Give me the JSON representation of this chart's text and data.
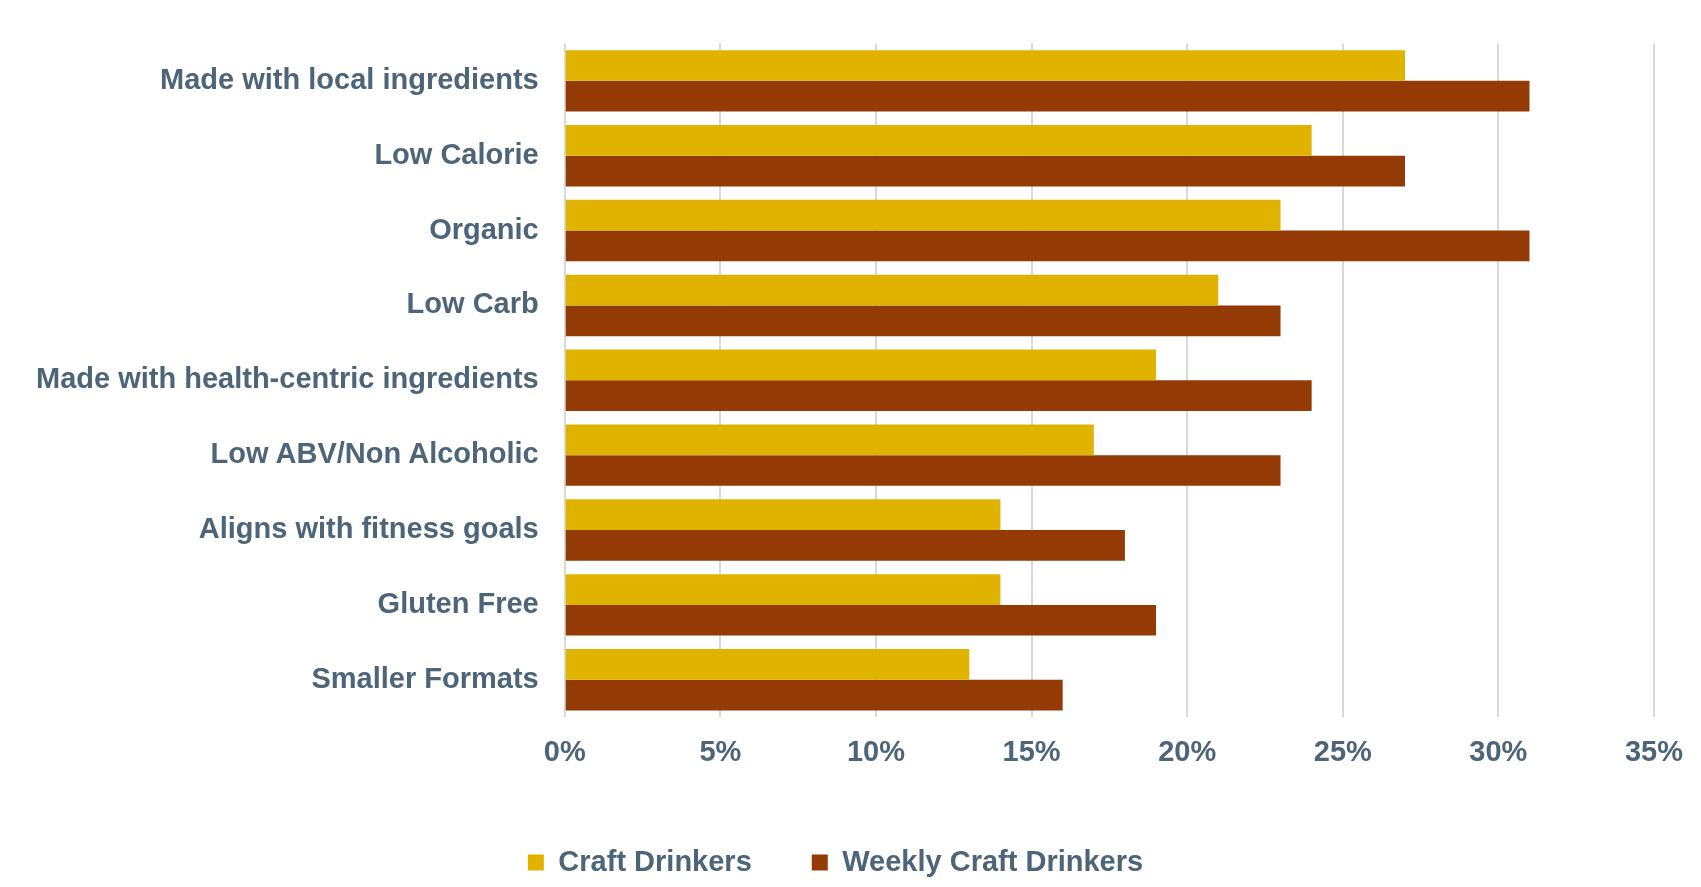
{
  "chart_data": {
    "type": "bar",
    "orientation": "horizontal",
    "categories": [
      "Made with local ingredients",
      "Low Calorie",
      "Organic",
      "Low Carb",
      "Made with health-centric ingredients",
      "Low ABV/Non Alcoholic",
      "Aligns with fitness goals",
      "Gluten Free",
      "Smaller Formats"
    ],
    "series": [
      {
        "name": "Craft Drinkers",
        "color": "#dfb300",
        "values": [
          27,
          24,
          23,
          21,
          19,
          17,
          14,
          14,
          13
        ]
      },
      {
        "name": "Weekly Craft Drinkers",
        "color": "#943b05",
        "values": [
          31,
          27,
          31,
          23,
          24,
          23,
          18,
          19,
          16
        ]
      }
    ],
    "xlim": [
      0,
      35
    ],
    "xticks": [
      {
        "value": 0,
        "label": "0%"
      },
      {
        "value": 5,
        "label": "5%"
      },
      {
        "value": 10,
        "label": "10%"
      },
      {
        "value": 15,
        "label": "15%"
      },
      {
        "value": 20,
        "label": "20%"
      },
      {
        "value": 25,
        "label": "25%"
      },
      {
        "value": 30,
        "label": "30%"
      },
      {
        "value": 35,
        "label": "35%"
      }
    ],
    "grid": "x",
    "legend": "bottom"
  }
}
